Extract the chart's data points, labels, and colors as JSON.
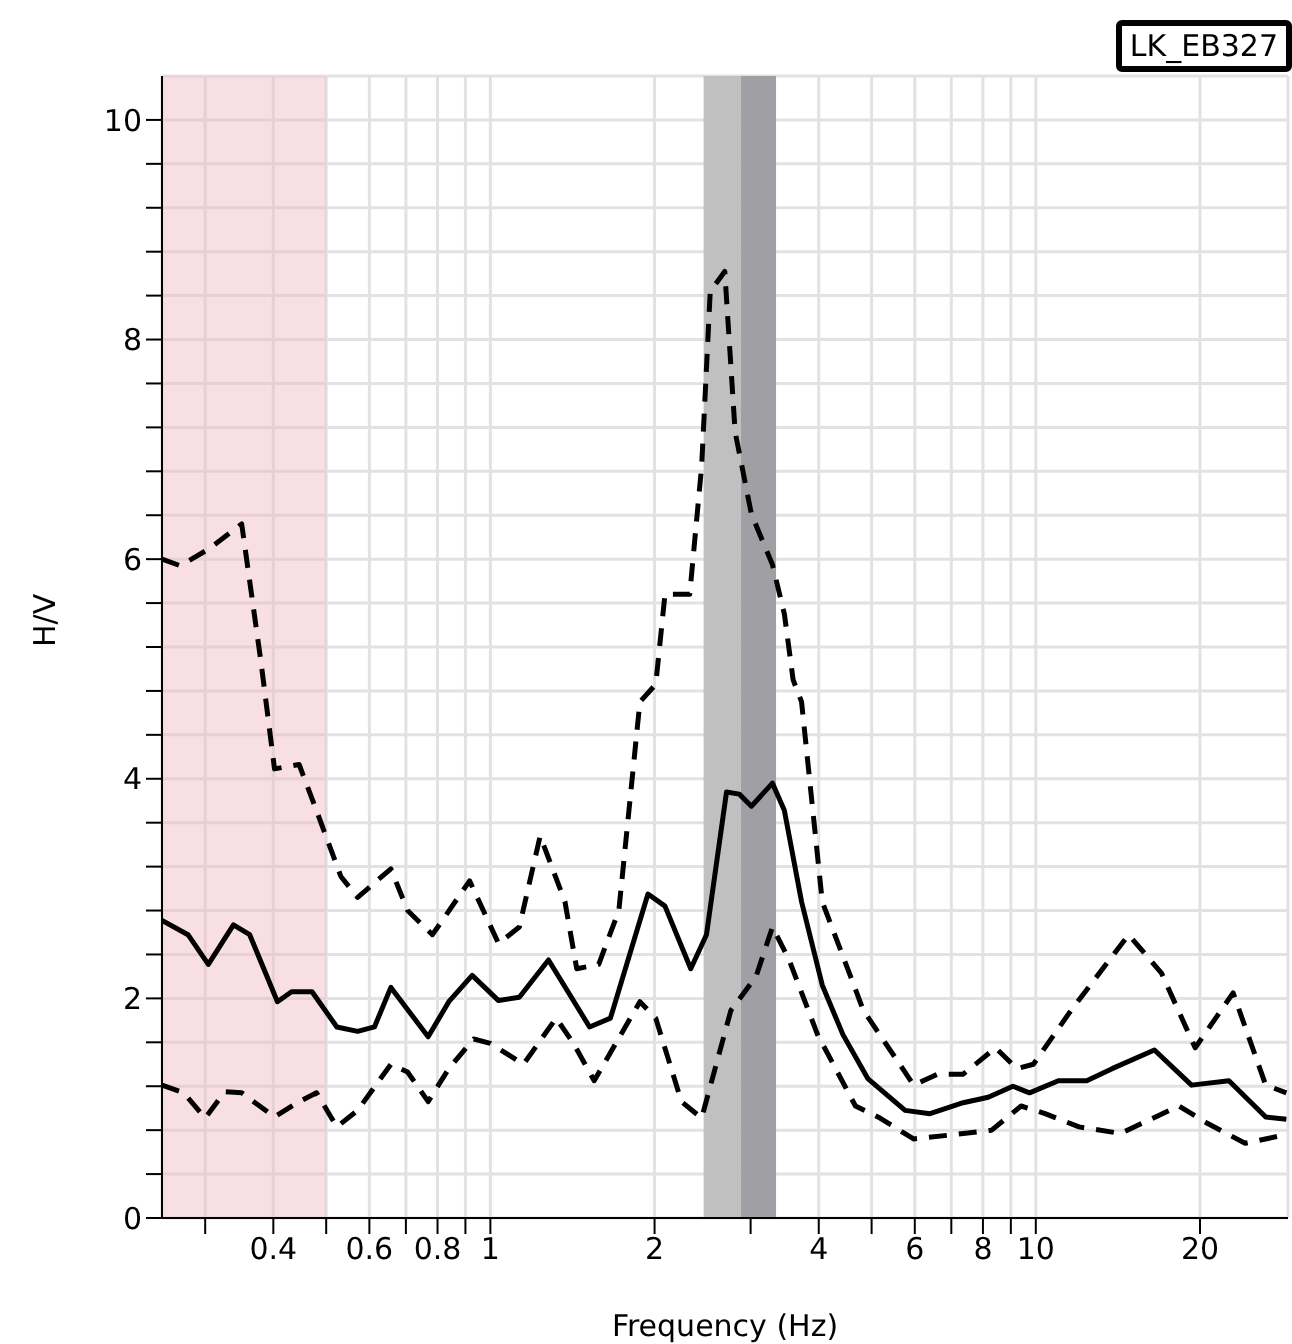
{
  "chart_data": {
    "type": "line",
    "xlabel": "Frequency (Hz)",
    "ylabel": "H/V",
    "annotations": [
      "LK_EB327"
    ],
    "log": "x",
    "grid": true,
    "xlim": [
      0.25,
      29
    ],
    "ylim": [
      0,
      10.4
    ],
    "xticks": [
      {
        "value": 0.3,
        "label": null
      },
      0.4,
      {
        "value": 0.5,
        "label": null
      },
      0.6,
      {
        "value": 0.7,
        "label": null
      },
      0.8,
      {
        "value": 0.9,
        "label": null
      },
      1,
      2,
      {
        "value": 3,
        "label": null
      },
      4,
      {
        "value": 5,
        "label": null
      },
      6,
      {
        "value": 7,
        "label": null
      },
      8,
      {
        "value": 9,
        "label": null
      },
      10,
      20
    ],
    "yticks": [
      0,
      {
        "value": 0.4,
        "label": null
      },
      {
        "value": 0.8,
        "label": null
      },
      {
        "value": 1.2,
        "label": null
      },
      {
        "value": 1.6,
        "label": null
      },
      2,
      {
        "value": 2.4,
        "label": null
      },
      {
        "value": 2.8,
        "label": null
      },
      {
        "value": 3.2,
        "label": null
      },
      {
        "value": 3.6,
        "label": null
      },
      4,
      {
        "value": 4.4,
        "label": null
      },
      {
        "value": 4.8,
        "label": null
      },
      {
        "value": 5.2,
        "label": null
      },
      {
        "value": 5.6,
        "label": null
      },
      6,
      {
        "value": 6.4,
        "label": null
      },
      {
        "value": 6.8,
        "label": null
      },
      {
        "value": 7.2,
        "label": null
      },
      {
        "value": 7.6,
        "label": null
      },
      8,
      {
        "value": 8.4,
        "label": null
      },
      {
        "value": 8.8,
        "label": null
      },
      {
        "value": 9.2,
        "label": null
      },
      {
        "value": 9.6,
        "label": null
      },
      10
    ],
    "bands": [
      {
        "axis": "x",
        "from": 0.25,
        "to": 0.5,
        "color": "#f0b8c0"
      },
      {
        "axis": "x",
        "from": 2.46,
        "to": 2.88,
        "color": "#c0c0c0"
      },
      {
        "axis": "x",
        "from": 2.88,
        "to": 3.34,
        "color": "#a0a0a4"
      }
    ],
    "series": [
      {
        "color": "#000000",
        "line_style": "dashed",
        "x": [
          0.25,
          0.27,
          0.304,
          0.35,
          0.362,
          0.38,
          0.402,
          0.446,
          0.48,
          0.532,
          0.571,
          0.657,
          0.705,
          0.783,
          0.916,
          1.035,
          1.13,
          1.234,
          1.37,
          1.44,
          1.58,
          1.72,
          1.88,
          2.01,
          2.09,
          2.32,
          2.44,
          2.53,
          2.69,
          2.81,
          3.01,
          3.29,
          3.46,
          3.59,
          3.72,
          4.06,
          4.83,
          5.56,
          5.97,
          6.6,
          7.36,
          8.44,
          9.23,
          9.9,
          11.6,
          14.8,
          17.0,
          19.6,
          23.0,
          26.4,
          28.8
        ],
        "values": [
          6.0,
          5.94,
          6.09,
          6.32,
          5.8,
          5.05,
          4.09,
          4.13,
          3.71,
          3.11,
          2.92,
          3.18,
          2.8,
          2.58,
          3.07,
          2.5,
          2.65,
          3.48,
          2.88,
          2.27,
          2.31,
          2.8,
          4.7,
          4.86,
          5.68,
          5.68,
          6.85,
          8.44,
          8.62,
          7.16,
          6.41,
          5.95,
          5.5,
          4.9,
          4.7,
          2.88,
          1.89,
          1.44,
          1.21,
          1.31,
          1.31,
          1.55,
          1.36,
          1.4,
          1.89,
          2.58,
          2.23,
          1.55,
          2.05,
          1.21,
          1.14
        ]
      },
      {
        "color": "#000000",
        "line_style": "solid",
        "x": [
          0.25,
          0.279,
          0.304,
          0.338,
          0.362,
          0.407,
          0.432,
          0.471,
          0.523,
          0.571,
          0.613,
          0.657,
          0.769,
          0.839,
          0.926,
          1.035,
          1.13,
          1.278,
          1.52,
          1.66,
          1.945,
          2.09,
          2.33,
          2.49,
          2.71,
          2.86,
          3.01,
          3.29,
          3.46,
          3.72,
          4.06,
          4.43,
          4.92,
          5.76,
          6.4,
          7.36,
          8.18,
          9.08,
          9.74,
          11.0,
          12.4,
          13.8,
          16.5,
          19.3,
          22.6,
          26.4,
          28.8
        ],
        "values": [
          2.71,
          2.58,
          2.31,
          2.67,
          2.58,
          1.97,
          2.06,
          2.06,
          1.74,
          1.7,
          1.74,
          2.1,
          1.65,
          1.97,
          2.21,
          1.98,
          2.01,
          2.35,
          1.74,
          1.82,
          2.95,
          2.84,
          2.27,
          2.58,
          3.88,
          3.86,
          3.75,
          3.96,
          3.71,
          2.88,
          2.12,
          1.67,
          1.27,
          0.98,
          0.95,
          1.05,
          1.1,
          1.2,
          1.14,
          1.25,
          1.25,
          1.36,
          1.53,
          1.21,
          1.25,
          0.92,
          0.9
        ]
      },
      {
        "color": "#000000",
        "line_style": "dashed",
        "x": [
          0.25,
          0.274,
          0.3,
          0.326,
          0.35,
          0.402,
          0.446,
          0.48,
          0.523,
          0.571,
          0.657,
          0.705,
          0.769,
          0.839,
          0.932,
          1.0,
          1.15,
          1.32,
          1.42,
          1.55,
          1.88,
          2.01,
          2.24,
          2.44,
          2.76,
          3.07,
          3.29,
          3.53,
          3.98,
          4.67,
          5.18,
          5.97,
          7.1,
          8.3,
          9.4,
          10.4,
          12.0,
          14.3,
          18.3,
          20.5,
          24.2,
          28.8
        ],
        "values": [
          1.21,
          1.14,
          0.91,
          1.15,
          1.14,
          0.92,
          1.06,
          1.14,
          0.83,
          0.98,
          1.4,
          1.33,
          1.06,
          1.36,
          1.63,
          1.59,
          1.4,
          1.82,
          1.59,
          1.25,
          1.97,
          1.82,
          1.06,
          0.91,
          1.89,
          2.2,
          2.65,
          2.35,
          1.67,
          1.02,
          0.91,
          0.72,
          0.76,
          0.8,
          1.02,
          0.95,
          0.83,
          0.77,
          1.02,
          0.87,
          0.68,
          0.76
        ]
      }
    ]
  }
}
